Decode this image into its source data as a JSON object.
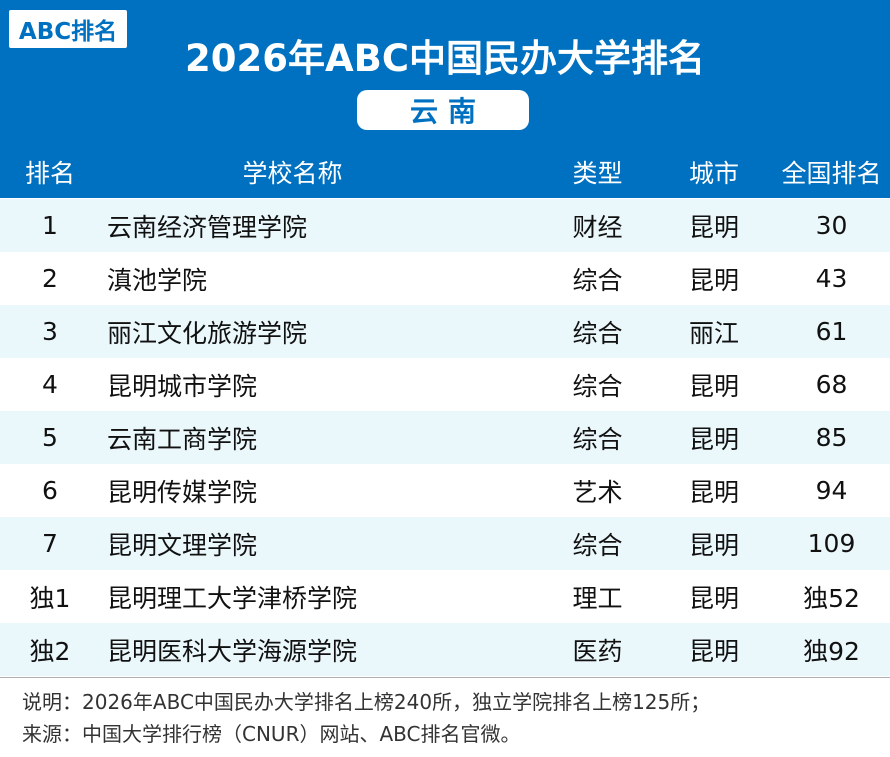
{
  "header": {
    "logo": "ABC排名",
    "title": "2026年ABC中国民办大学排名",
    "region": "云南"
  },
  "table": {
    "columns": [
      "排名",
      "学校名称",
      "类型",
      "城市",
      "全国排名"
    ],
    "rows": [
      {
        "rank": "1",
        "name": "云南经济管理学院",
        "type": "财经",
        "city": "昆明",
        "national": "30"
      },
      {
        "rank": "2",
        "name": "滇池学院",
        "type": "综合",
        "city": "昆明",
        "national": "43"
      },
      {
        "rank": "3",
        "name": "丽江文化旅游学院",
        "type": "综合",
        "city": "丽江",
        "national": "61"
      },
      {
        "rank": "4",
        "name": "昆明城市学院",
        "type": "综合",
        "city": "昆明",
        "national": "68"
      },
      {
        "rank": "5",
        "name": "云南工商学院",
        "type": "综合",
        "city": "昆明",
        "national": "85"
      },
      {
        "rank": "6",
        "name": "昆明传媒学院",
        "type": "艺术",
        "city": "昆明",
        "national": "94"
      },
      {
        "rank": "7",
        "name": "昆明文理学院",
        "type": "综合",
        "city": "昆明",
        "national": "109"
      },
      {
        "rank": "独1",
        "name": "昆明理工大学津桥学院",
        "type": "理工",
        "city": "昆明",
        "national": "独52"
      },
      {
        "rank": "独2",
        "name": "昆明医科大学海源学院",
        "type": "医药",
        "city": "昆明",
        "national": "独92"
      }
    ]
  },
  "notes": {
    "line1": "说明：2026年ABC中国民办大学排名上榜240所，独立学院排名上榜125所；",
    "line2": "来源：中国大学排行榜（CNUR）网站、ABC排名官微。"
  },
  "colors": {
    "brand_blue": "#0070c0",
    "row_alt": "#eaf7fb",
    "row_plain": "#ffffff"
  }
}
